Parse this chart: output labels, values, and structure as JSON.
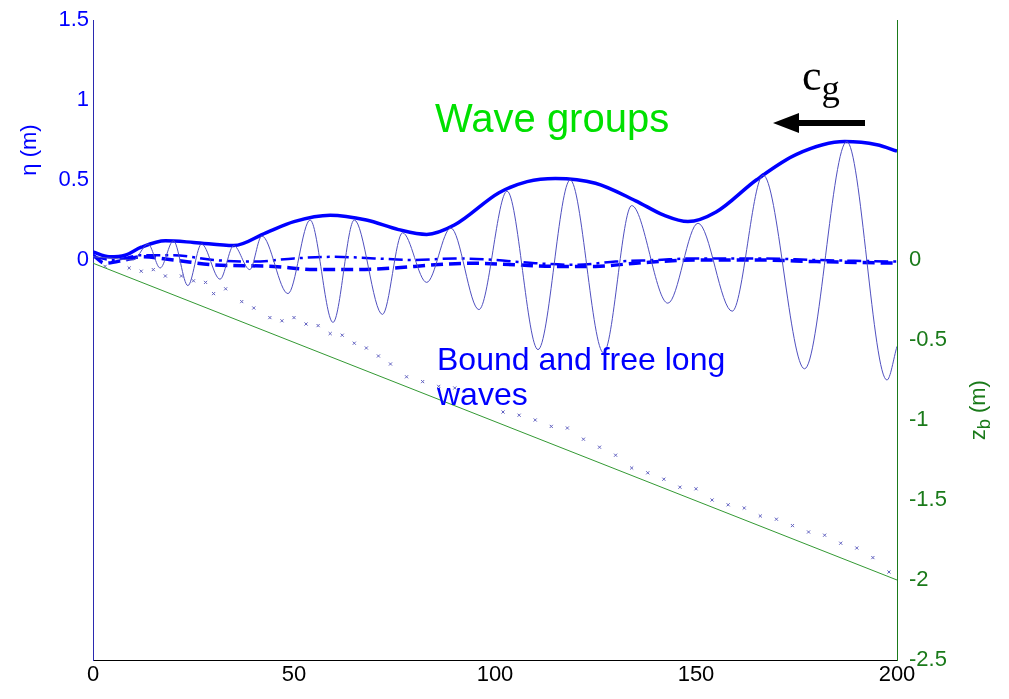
{
  "chart_data": {
    "type": "line",
    "ylabel": "η (m)",
    "y2label": "z$_{b}$ (m)",
    "xlim": [
      0,
      200
    ],
    "xticks": [
      0,
      50,
      100,
      150,
      200
    ],
    "ylim": [
      -2.5,
      1.5
    ],
    "yticks": [
      0,
      0.5,
      1,
      1.5
    ],
    "y2lim": [
      -2.5,
      1.5
    ],
    "y2ticks": [
      0,
      -0.5,
      -1,
      -1.5,
      -2,
      -2.5
    ],
    "grid": false,
    "legend": false,
    "annotations": [
      "Wave groups",
      "c$_{g}$",
      "Bound and free long waves"
    ],
    "series": [
      {
        "color": "#5050c0",
        "line_style": "solid",
        "marker": "none",
        "x": [
          0,
          5,
          10,
          13.7,
          16.7,
          20,
          23.6,
          27,
          31.6,
          35,
          39,
          42,
          48.5,
          54,
          59.7,
          65,
          72,
          77,
          83,
          89,
          96,
          103,
          110.7,
          118.7,
          127,
          134,
          143,
          150.5,
          159,
          166.7,
          177,
          187.5,
          197.5,
          200
        ],
        "values": [
          0.02,
          0.01,
          0.0,
          0.1,
          -0.05,
          0.12,
          -0.16,
          0.1,
          -0.12,
          0.09,
          -0.06,
          0.15,
          -0.21,
          0.25,
          -0.39,
          0.25,
          -0.34,
          0.17,
          -0.14,
          0.2,
          -0.31,
          0.43,
          -0.56,
          0.5,
          -0.58,
          0.34,
          -0.27,
          0.23,
          -0.32,
          0.53,
          -0.68,
          0.74,
          -0.75,
          -0.54
        ]
      },
      {
        "color": "#0000ff",
        "line_style": "solid",
        "marker": "none",
        "x": [
          0,
          4,
          8,
          12,
          18,
          25,
          35,
          43,
          50,
          59,
          68,
          76,
          83,
          90,
          101,
          108,
          115,
          125,
          135,
          142,
          148,
          155,
          165,
          175,
          187,
          195,
          200
        ],
        "values": [
          0.05,
          0.02,
          0.03,
          0.08,
          0.12,
          0.11,
          0.09,
          0.17,
          0.24,
          0.28,
          0.25,
          0.19,
          0.16,
          0.22,
          0.42,
          0.49,
          0.51,
          0.48,
          0.37,
          0.28,
          0.24,
          0.3,
          0.5,
          0.66,
          0.74,
          0.72,
          0.68
        ]
      },
      {
        "color": "#0000ff",
        "line_style": "dashed",
        "marker": "none",
        "x": [
          0,
          3,
          8,
          12,
          20,
          30,
          45,
          55,
          65,
          75,
          85,
          95,
          105,
          115,
          125,
          135,
          150,
          165,
          180,
          200
        ],
        "values": [
          0.03,
          -0.02,
          0.0,
          0.02,
          0.0,
          -0.03,
          -0.04,
          -0.06,
          -0.06,
          -0.05,
          -0.03,
          -0.02,
          -0.03,
          -0.04,
          -0.04,
          -0.02,
          0.0,
          0.0,
          -0.01,
          -0.02
        ]
      },
      {
        "color": "#0000ff",
        "line_style": "dashdot",
        "marker": "none",
        "x": [
          0,
          5,
          12,
          20,
          30,
          40,
          50,
          60,
          70,
          80,
          90,
          100,
          110,
          120,
          130,
          140,
          150,
          165,
          180,
          200
        ],
        "values": [
          0.02,
          0.0,
          0.03,
          0.03,
          0.0,
          -0.01,
          0.01,
          0.02,
          0.01,
          0.0,
          0.01,
          0.0,
          -0.02,
          -0.03,
          -0.01,
          0.0,
          0.01,
          0.01,
          0.0,
          -0.01
        ]
      },
      {
        "color": "#339933",
        "line_style": "solid",
        "marker": "none",
        "x": [
          0,
          200
        ],
        "values": [
          -0.02,
          -2.0
        ]
      },
      {
        "type": "scatter",
        "color": "#6060c0",
        "marker": "cross",
        "x": [
          3,
          6,
          9,
          12,
          15,
          18,
          22,
          25,
          28,
          30,
          33,
          37,
          40,
          44,
          47,
          50,
          53,
          56,
          59,
          62,
          65,
          68,
          71,
          74,
          78,
          82,
          86,
          90,
          94,
          98,
          102,
          106,
          110,
          114,
          118,
          122,
          126,
          130,
          134,
          138,
          142,
          146,
          150,
          154,
          158,
          162,
          166,
          170,
          174,
          178,
          182,
          186,
          190,
          194,
          198
        ],
        "values": [
          -0.04,
          null,
          -0.05,
          -0.07,
          -0.06,
          -0.1,
          -0.1,
          -0.13,
          -0.14,
          -0.21,
          -0.18,
          -0.26,
          -0.3,
          -0.36,
          -0.38,
          -0.36,
          -0.4,
          -0.41,
          -0.46,
          -0.47,
          -0.52,
          -0.55,
          -0.6,
          -0.65,
          -0.73,
          -0.76,
          -0.79,
          -0.8,
          null,
          null,
          -0.95,
          -0.97,
          -1.0,
          -1.04,
          -1.05,
          -1.12,
          -1.17,
          -1.22,
          -1.3,
          -1.33,
          -1.37,
          -1.42,
          -1.43,
          -1.5,
          -1.53,
          -1.55,
          -1.6,
          -1.62,
          -1.66,
          -1.7,
          -1.72,
          -1.77,
          -1.8,
          -1.86,
          -1.95
        ]
      }
    ]
  }
}
